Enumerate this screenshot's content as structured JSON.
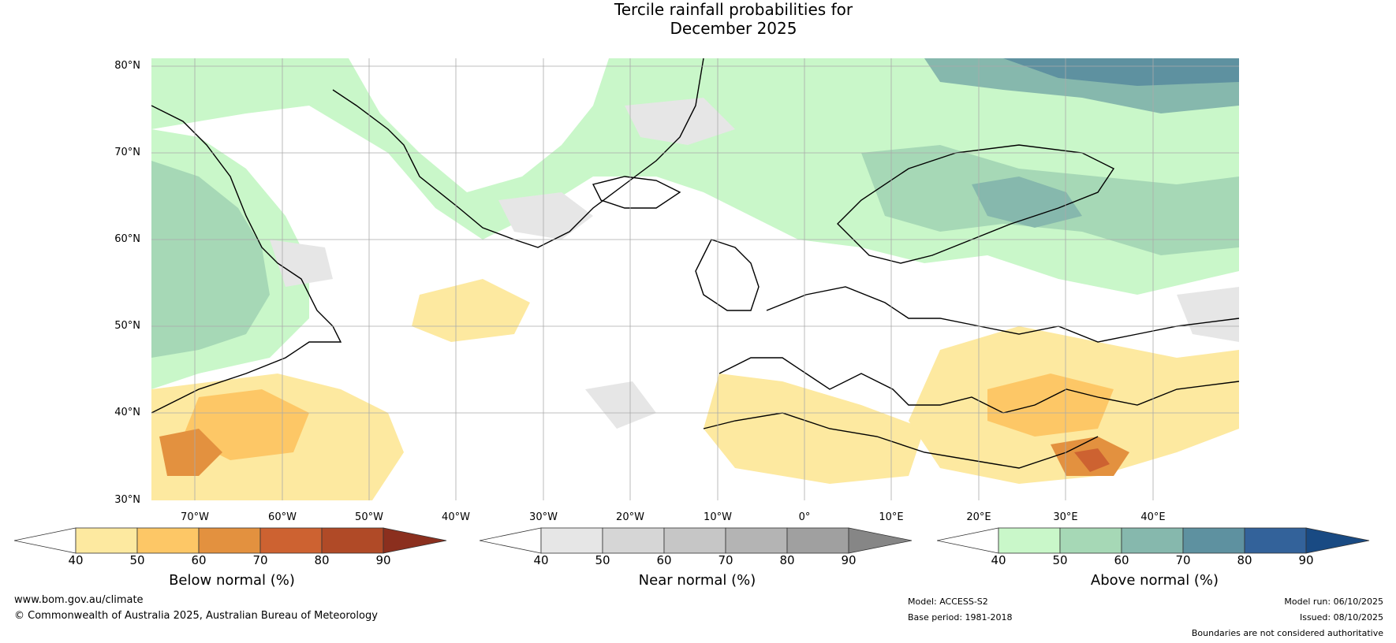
{
  "title": {
    "line1": "Tercile rainfall probabilities for",
    "line2": "December 2025"
  },
  "map": {
    "lat_labels": [
      "80°N",
      "70°N",
      "60°N",
      "50°N",
      "40°N",
      "30°N"
    ],
    "lon_labels": [
      "70°W",
      "60°W",
      "50°W",
      "40°W",
      "30°W",
      "20°W",
      "10°W",
      "0°",
      "10°E",
      "20°E",
      "30°E",
      "40°E"
    ],
    "graticule_color": "#aaaaaa"
  },
  "colorbars": {
    "below": {
      "label": "Below normal (%)",
      "ticks": [
        "40",
        "50",
        "60",
        "70",
        "80",
        "90"
      ],
      "colors": [
        "#ffffff",
        "#fde9a0",
        "#fdc766",
        "#e3913f",
        "#cd6231",
        "#b04a27",
        "#8b2f1e"
      ]
    },
    "near": {
      "label": "Near normal (%)",
      "ticks": [
        "40",
        "50",
        "60",
        "70",
        "80",
        "90"
      ],
      "colors": [
        "#ffffff",
        "#e6e6e6",
        "#d6d6d6",
        "#c6c6c6",
        "#b4b4b4",
        "#a0a0a0",
        "#868686"
      ]
    },
    "above": {
      "label": "Above normal (%)",
      "ticks": [
        "40",
        "50",
        "60",
        "70",
        "80",
        "90"
      ],
      "colors": [
        "#ffffff",
        "#c9f7c9",
        "#a6d8b6",
        "#86b8ad",
        "#5e91a0",
        "#33629a",
        "#194a83"
      ]
    }
  },
  "footer": {
    "website": "www.bom.gov.au/climate",
    "copyright": "© Commonwealth of Australia 2025, Australian Bureau of Meteorology",
    "model": "Model: ACCESS-S2",
    "base_period": "Base period: 1981-2018",
    "model_run": "Model run: 06/10/2025",
    "issued": "Issued: 08/10/2025",
    "disclaimer": "Boundaries are not considered authoritative"
  }
}
